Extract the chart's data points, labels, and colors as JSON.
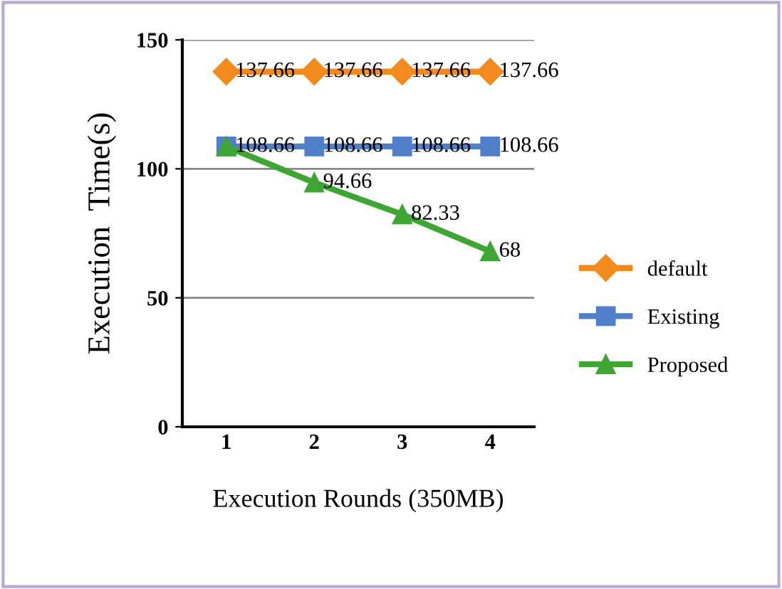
{
  "chart_data": {
    "type": "line",
    "xlabel": "Execution Rounds (350MB)",
    "ylabel": "Execution  Time(s)",
    "categories": [
      "1",
      "2",
      "3",
      "4"
    ],
    "series": [
      {
        "name": "default",
        "color": "#f28a1e",
        "marker": "diamond",
        "values": [
          137.66,
          137.66,
          137.66,
          137.66
        ],
        "value_labels": [
          "137.66",
          "137.66",
          "137.66",
          "137.66"
        ]
      },
      {
        "name": "Existing",
        "color": "#4f7fc8",
        "marker": "square",
        "values": [
          108.66,
          108.66,
          108.66,
          108.66
        ],
        "value_labels": [
          "108.66",
          "108.66",
          "108.66",
          "108.66"
        ]
      },
      {
        "name": "Proposed",
        "color": "#3fa535",
        "marker": "triangle",
        "values": [
          108.66,
          94.66,
          82.33,
          68
        ],
        "value_labels": [
          null,
          "94.66",
          "82.33",
          "68"
        ]
      }
    ],
    "ylim": [
      0,
      150
    ],
    "yticks": [
      0,
      50,
      100,
      150
    ],
    "grid": "y",
    "legend": "right"
  }
}
